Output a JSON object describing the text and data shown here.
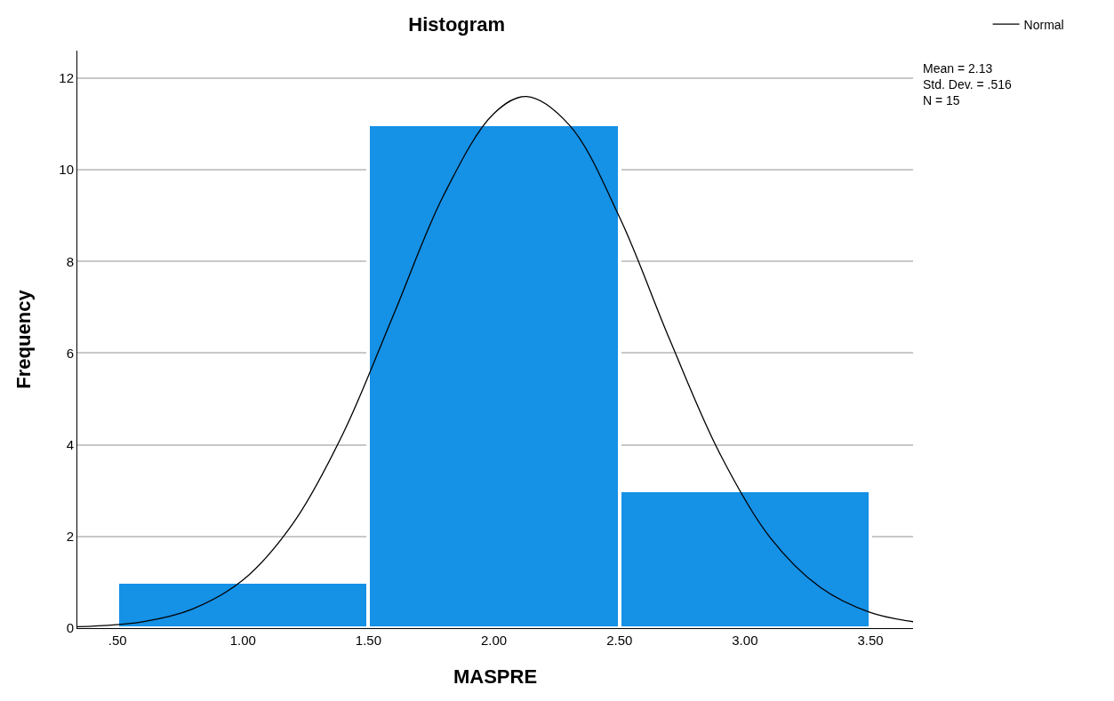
{
  "chart_data": {
    "type": "histogram",
    "title": "Histogram",
    "xlabel": "MASPRE",
    "ylabel": "Frequency",
    "bins": [
      0.5,
      1.5,
      2.5,
      3.5
    ],
    "values": [
      1,
      11,
      3
    ],
    "color": "#1591e6",
    "series": [
      {
        "type": "line",
        "name": "Normal",
        "color": "#000000",
        "x": [
          0.34,
          0.6,
          0.8,
          1.0,
          1.2,
          1.4,
          1.6,
          1.8,
          2.0,
          2.13,
          2.3,
          2.5,
          2.7,
          2.9,
          3.1,
          3.3,
          3.5,
          3.67
        ],
        "values": [
          0.03,
          0.14,
          0.42,
          1.05,
          2.29,
          4.26,
          6.84,
          9.45,
          11.23,
          11.6,
          10.98,
          8.97,
          6.3,
          3.81,
          1.98,
          0.89,
          0.34,
          0.14
        ]
      }
    ],
    "xlim": [
      0.34,
      3.67
    ],
    "xticks": [
      {
        "value": 0.5,
        "label": ".50"
      },
      {
        "value": 1.0,
        "label": "1.00"
      },
      {
        "value": 1.5,
        "label": "1.50"
      },
      {
        "value": 2.0,
        "label": "2.00"
      },
      {
        "value": 2.5,
        "label": "2.50"
      },
      {
        "value": 3.0,
        "label": "3.00"
      },
      {
        "value": 3.5,
        "label": "3.50"
      }
    ],
    "ylim": [
      0,
      12.6
    ],
    "yticks": [
      0,
      2,
      4,
      6,
      8,
      10,
      12
    ],
    "grid": "y",
    "legend": "top right",
    "marker": "none",
    "line_style": "solid",
    "annotations": [
      "Mean = 2.13",
      "Std. Dev. = .516",
      "N = 15"
    ]
  }
}
